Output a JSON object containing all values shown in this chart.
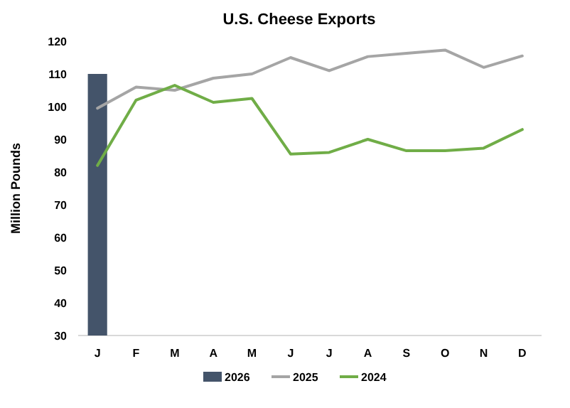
{
  "chart_data": {
    "type": "bar",
    "title": "U.S. Cheese Exports",
    "ylabel": "Million Pounds",
    "categories": [
      "J",
      "F",
      "M",
      "A",
      "M",
      "J",
      "J",
      "A",
      "S",
      "O",
      "N",
      "D"
    ],
    "series": [
      {
        "name": "2026",
        "color": "#44546a",
        "values": [
          110,
          null,
          null,
          null,
          null,
          null,
          null,
          null,
          null,
          null,
          null,
          null
        ]
      },
      {
        "name": "2025",
        "type": "line",
        "color": "#a5a5a5",
        "values": [
          99.5,
          106,
          105,
          108.7,
          110,
          115,
          111,
          115.3,
          116.3,
          117.3,
          112,
          115.5
        ]
      },
      {
        "name": "2024",
        "type": "line",
        "color": "#70ad47",
        "values": [
          82,
          102,
          106.5,
          101.3,
          102.5,
          85.5,
          86,
          90,
          86.5,
          86.5,
          87.3,
          93
        ]
      }
    ],
    "ylim": [
      30,
      120
    ],
    "yticks": [
      30,
      40,
      50,
      60,
      70,
      80,
      90,
      100,
      110,
      120
    ],
    "grid": false,
    "legend": "bottom",
    "marker": "none",
    "line_style": "solid"
  }
}
